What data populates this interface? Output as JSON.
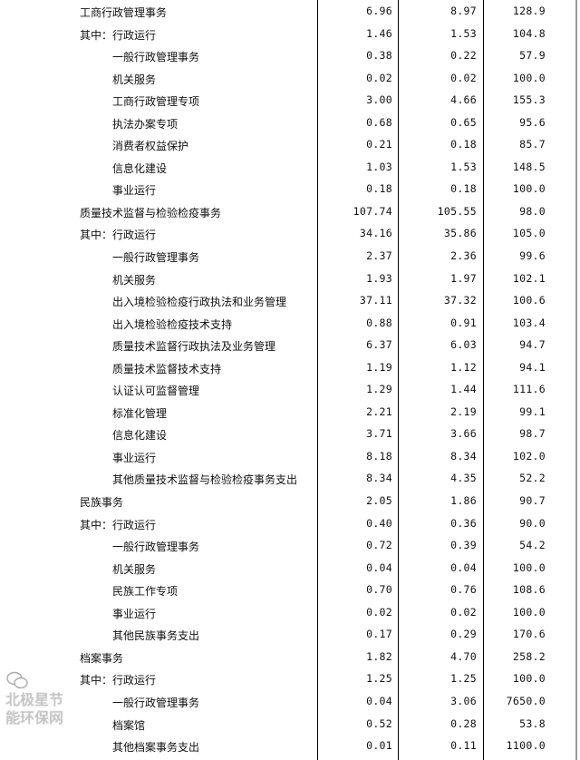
{
  "rows": [
    {
      "label": "工商行政管理事务",
      "level": 0,
      "v1": "6.96",
      "v2": "8.97",
      "v3": "128.9"
    },
    {
      "label": "其中：行政运行",
      "level": 0,
      "v1": "1.46",
      "v2": "1.53",
      "v3": "104.8"
    },
    {
      "label": "一般行政管理事务",
      "level": 1,
      "v1": "0.38",
      "v2": "0.22",
      "v3": "57.9"
    },
    {
      "label": "机关服务",
      "level": 1,
      "v1": "0.02",
      "v2": "0.02",
      "v3": "100.0"
    },
    {
      "label": "工商行政管理专项",
      "level": 1,
      "v1": "3.00",
      "v2": "4.66",
      "v3": "155.3"
    },
    {
      "label": "执法办案专项",
      "level": 1,
      "v1": "0.68",
      "v2": "0.65",
      "v3": "95.6"
    },
    {
      "label": "消费者权益保护",
      "level": 1,
      "v1": "0.21",
      "v2": "0.18",
      "v3": "85.7"
    },
    {
      "label": "信息化建设",
      "level": 1,
      "v1": "1.03",
      "v2": "1.53",
      "v3": "148.5"
    },
    {
      "label": "事业运行",
      "level": 1,
      "v1": "0.18",
      "v2": "0.18",
      "v3": "100.0"
    },
    {
      "label": "质量技术监督与检验检疫事务",
      "level": 0,
      "v1": "107.74",
      "v2": "105.55",
      "v3": "98.0"
    },
    {
      "label": "其中：行政运行",
      "level": 0,
      "v1": "34.16",
      "v2": "35.86",
      "v3": "105.0"
    },
    {
      "label": "一般行政管理事务",
      "level": 1,
      "v1": "2.37",
      "v2": "2.36",
      "v3": "99.6"
    },
    {
      "label": "机关服务",
      "level": 1,
      "v1": "1.93",
      "v2": "1.97",
      "v3": "102.1"
    },
    {
      "label": "出入境检验检疫行政执法和业务管理",
      "level": 1,
      "v1": "37.11",
      "v2": "37.32",
      "v3": "100.6"
    },
    {
      "label": "出入境检验检疫技术支持",
      "level": 1,
      "v1": "0.88",
      "v2": "0.91",
      "v3": "103.4"
    },
    {
      "label": "质量技术监督行政执法及业务管理",
      "level": 1,
      "v1": "6.37",
      "v2": "6.03",
      "v3": "94.7"
    },
    {
      "label": "质量技术监督技术支持",
      "level": 1,
      "v1": "1.19",
      "v2": "1.12",
      "v3": "94.1"
    },
    {
      "label": "认证认可监督管理",
      "level": 1,
      "v1": "1.29",
      "v2": "1.44",
      "v3": "111.6"
    },
    {
      "label": "标准化管理",
      "level": 1,
      "v1": "2.21",
      "v2": "2.19",
      "v3": "99.1"
    },
    {
      "label": "信息化建设",
      "level": 1,
      "v1": "3.71",
      "v2": "3.66",
      "v3": "98.7"
    },
    {
      "label": "事业运行",
      "level": 1,
      "v1": "8.18",
      "v2": "8.34",
      "v3": "102.0"
    },
    {
      "label": "其他质量技术监督与检验检疫事务支出",
      "level": 1,
      "v1": "8.34",
      "v2": "4.35",
      "v3": "52.2"
    },
    {
      "label": "民族事务",
      "level": 0,
      "v1": "2.05",
      "v2": "1.86",
      "v3": "90.7"
    },
    {
      "label": "其中：行政运行",
      "level": 0,
      "v1": "0.40",
      "v2": "0.36",
      "v3": "90.0"
    },
    {
      "label": "一般行政管理事务",
      "level": 1,
      "v1": "0.72",
      "v2": "0.39",
      "v3": "54.2"
    },
    {
      "label": "机关服务",
      "level": 1,
      "v1": "0.04",
      "v2": "0.04",
      "v3": "100.0"
    },
    {
      "label": "民族工作专项",
      "level": 1,
      "v1": "0.70",
      "v2": "0.76",
      "v3": "108.6"
    },
    {
      "label": "事业运行",
      "level": 1,
      "v1": "0.02",
      "v2": "0.02",
      "v3": "100.0"
    },
    {
      "label": "其他民族事务支出",
      "level": 1,
      "v1": "0.17",
      "v2": "0.29",
      "v3": "170.6"
    },
    {
      "label": "档案事务",
      "level": 0,
      "v1": "1.82",
      "v2": "4.70",
      "v3": "258.2"
    },
    {
      "label": "其中：行政运行",
      "level": 0,
      "v1": "1.25",
      "v2": "1.25",
      "v3": "100.0"
    },
    {
      "label": "一般行政管理事务",
      "level": 1,
      "v1": "0.04",
      "v2": "3.06",
      "v3": "7650.0"
    },
    {
      "label": "档案馆",
      "level": 1,
      "v1": "0.52",
      "v2": "0.28",
      "v3": "53.8"
    },
    {
      "label": "其他档案事务支出",
      "level": 1,
      "v1": "0.01",
      "v2": "0.11",
      "v3": "1100.0"
    }
  ],
  "watermark": {
    "text": "北极星节能环保网",
    "icon": "wechat-icon"
  }
}
